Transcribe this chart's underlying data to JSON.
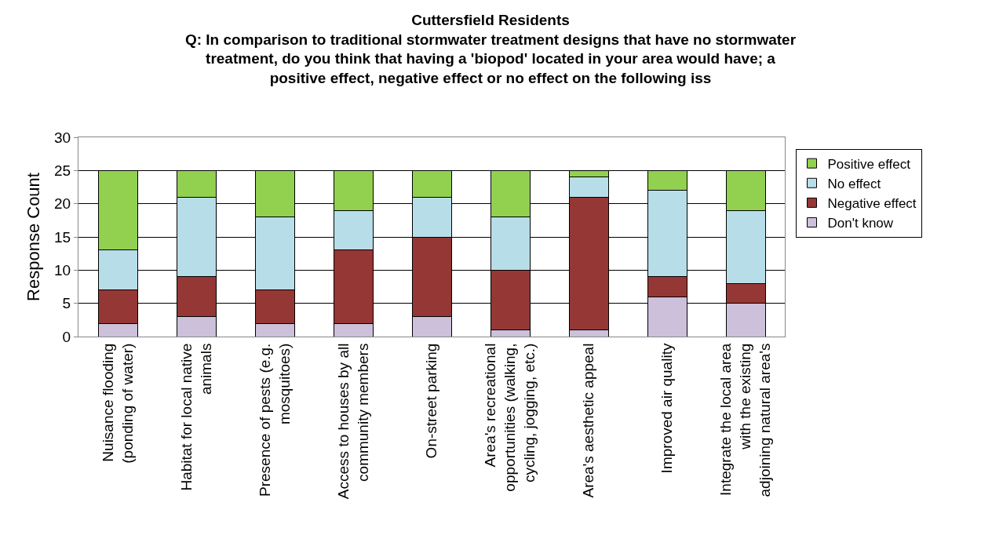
{
  "chart_data": {
    "type": "bar",
    "stacked": true,
    "title": "Cuttersfield Residents",
    "subtitle": "Q: In comparison to traditional stormwater treatment designs that have no stormwater treatment, do you think that having a 'biopod' located in your area would have; a positive effect, negative effect or no effect on the following iss",
    "ylabel": "Response Count",
    "categories": [
      "Nuisance flooding (ponding of water)",
      "Habitat for local native animals",
      "Presence of pests (e.g. mosquitoes)",
      "Access to houses by all community members",
      "On-street parking",
      "Area's recreational opportunities (walking, cycling, jogging, etc.)",
      "Area's aesthetic appeal",
      "Improved air quality",
      "Integrate the local area with the existing adjoining natural area's"
    ],
    "series": [
      {
        "name": "Don't know",
        "color": "#ccc0da",
        "values": [
          2,
          3,
          2,
          2,
          3,
          1,
          1,
          6,
          5
        ]
      },
      {
        "name": "Negative effect",
        "color": "#953735",
        "values": [
          5,
          6,
          5,
          11,
          12,
          9,
          20,
          3,
          3
        ]
      },
      {
        "name": "No effect",
        "color": "#b7dee8",
        "values": [
          6,
          12,
          11,
          6,
          6,
          8,
          3,
          13,
          11
        ]
      },
      {
        "name": "Positive effect",
        "color": "#92d050",
        "values": [
          12,
          4,
          7,
          6,
          4,
          7,
          1,
          3,
          6
        ]
      }
    ],
    "ylim": [
      0,
      30
    ],
    "yticks": [
      0,
      5,
      10,
      15,
      20,
      25,
      30
    ],
    "grid": "y",
    "legend": "right"
  }
}
